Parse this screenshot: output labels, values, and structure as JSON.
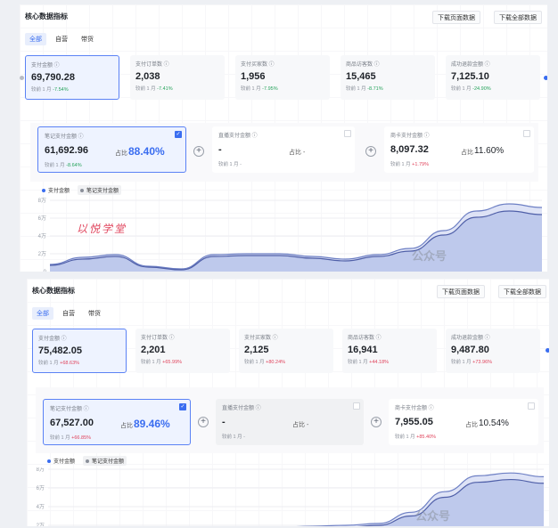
{
  "panels": [
    {
      "title": "核心数据指标",
      "buttons": {
        "download_page": "下载页面数据",
        "download_all": "下载全部数据"
      },
      "tabs": [
        "全部",
        "自营",
        "带货"
      ],
      "metrics": [
        {
          "label": "支付金额 ⓘ",
          "value": "69,790.28",
          "cmp_label": "较前 1 月",
          "cmp_value": "-7.54%",
          "trend": "down"
        },
        {
          "label": "支付订单数 ⓘ",
          "value": "2,038",
          "cmp_label": "较前 1 月",
          "cmp_value": "-7.41%",
          "trend": "down"
        },
        {
          "label": "支付买家数 ⓘ",
          "value": "1,956",
          "cmp_label": "较前 1 月",
          "cmp_value": "-7.95%",
          "trend": "down"
        },
        {
          "label": "商品访客数 ⓘ",
          "value": "15,465",
          "cmp_label": "较前 1 月",
          "cmp_value": "-8.71%",
          "trend": "down"
        },
        {
          "label": "成功退款金额 ⓘ",
          "value": "7,125.10",
          "cmp_label": "较前 1 月",
          "cmp_value": "-24.90%",
          "trend": "down"
        }
      ],
      "sub_cards": [
        {
          "label": "笔记支付金额 ⓘ",
          "value": "61,692.96",
          "ratio_label": "占比",
          "ratio": "88.40%",
          "cmp_label": "较前 1 月",
          "cmp_value": "-8.64%",
          "trend": "down"
        },
        {
          "label": "直播支付金额 ⓘ",
          "value": "-",
          "ratio_label": "占比 -",
          "ratio": "",
          "cmp_label": "较前 1 月 -",
          "cmp_value": "",
          "trend": ""
        },
        {
          "label": "商卡支付金额 ⓘ",
          "value": "8,097.32",
          "ratio_label": "占比",
          "ratio": "11.60%",
          "cmp_label": "较前 1 月",
          "cmp_value": "+1.79%",
          "trend": "up"
        }
      ],
      "legend": [
        "支付金额",
        "笔记支付金额"
      ],
      "watermark": "公众号"
    },
    {
      "title": "核心数据指标",
      "buttons": {
        "download_page": "下载页面数据",
        "download_all": "下载全部数据"
      },
      "tabs": [
        "全部",
        "自营",
        "带货"
      ],
      "metrics": [
        {
          "label": "支付金额 ⓘ",
          "value": "75,482.05",
          "cmp_label": "较前 1 月",
          "cmp_value": "+68.63%",
          "trend": "up"
        },
        {
          "label": "支付订单数 ⓘ",
          "value": "2,201",
          "cmp_label": "较前 1 月",
          "cmp_value": "+65.99%",
          "trend": "up"
        },
        {
          "label": "支付买家数 ⓘ",
          "value": "2,125",
          "cmp_label": "较前 1 月",
          "cmp_value": "+80.24%",
          "trend": "up"
        },
        {
          "label": "商品访客数 ⓘ",
          "value": "16,941",
          "cmp_label": "较前 1 月",
          "cmp_value": "+44.18%",
          "trend": "up"
        },
        {
          "label": "成功退款金额 ⓘ",
          "value": "9,487.80",
          "cmp_label": "较前 1 月",
          "cmp_value": "+73.96%",
          "trend": "up"
        }
      ],
      "sub_cards": [
        {
          "label": "笔记支付金额 ⓘ",
          "value": "67,527.00",
          "ratio_label": "占比",
          "ratio": "89.46%",
          "cmp_label": "较前 1 月",
          "cmp_value": "+66.85%",
          "trend": "up"
        },
        {
          "label": "直播支付金额 ⓘ",
          "value": "-",
          "ratio_label": "占比 -",
          "ratio": "",
          "cmp_label": "较前 1 月 -",
          "cmp_value": "",
          "trend": ""
        },
        {
          "label": "商卡支付金额 ⓘ",
          "value": "7,955.05",
          "ratio_label": "占比",
          "ratio": "10.54%",
          "cmp_label": "较前 1 月",
          "cmp_value": "+85.40%",
          "trend": "up"
        }
      ],
      "legend": [
        "支付金额",
        "笔记支付金额"
      ],
      "watermark": "公众号"
    }
  ],
  "brand_mark": "以悦学堂",
  "colors": {
    "accent": "#3a6df0",
    "down": "#25a35a",
    "up": "#e0445c",
    "area_fill": "#c9d3f2",
    "area_line": "#5b6fb8"
  },
  "chart_data": [
    {
      "type": "area",
      "y_tick_labels": [
        "0",
        "2万",
        "4万",
        "6万",
        "8万"
      ],
      "ylim": [
        0,
        8
      ],
      "series": [
        {
          "name": "支付金额",
          "values": [
            0.8,
            1.6,
            1.9,
            0.6,
            0.3,
            1.9,
            2.0,
            2.0,
            1.7,
            1.4,
            1.9,
            2.6,
            4.6,
            6.8,
            7.6,
            7.2
          ]
        },
        {
          "name": "笔记支付金额",
          "values": [
            0.7,
            1.4,
            1.7,
            0.5,
            0.2,
            1.7,
            1.8,
            1.8,
            1.5,
            1.2,
            1.7,
            2.3,
            4.1,
            6.1,
            6.8,
            6.4
          ]
        }
      ]
    },
    {
      "type": "area",
      "y_tick_labels": [
        "2万",
        "4万",
        "6万",
        "8万"
      ],
      "ylim": [
        0,
        8
      ],
      "series": [
        {
          "name": "支付金额",
          "values": [
            1.6,
            1.8,
            1.5,
            1.0,
            0.8,
            1.6,
            1.7,
            1.8,
            1.9,
            2.0,
            2.2,
            3.4,
            5.6,
            7.3,
            7.6,
            7.2
          ]
        },
        {
          "name": "笔记支付金额",
          "values": [
            1.4,
            1.6,
            1.3,
            0.9,
            0.7,
            1.4,
            1.5,
            1.6,
            1.7,
            1.8,
            2.0,
            3.0,
            5.0,
            6.6,
            6.9,
            6.5
          ]
        }
      ]
    }
  ]
}
